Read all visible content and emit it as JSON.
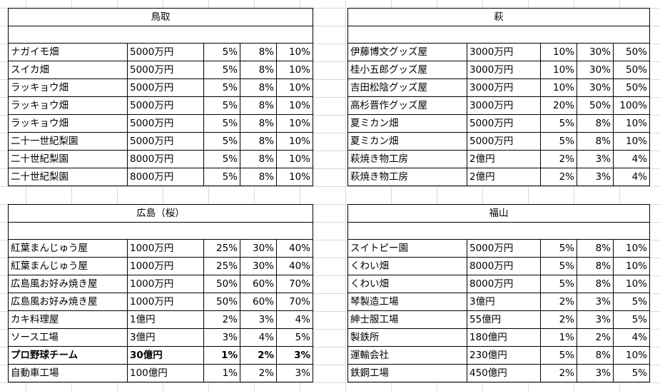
{
  "sheet": {
    "blocks": [
      {
        "title": "鳥取",
        "rows": [
          [
            "ナガイモ畑",
            "5000万円",
            "5%",
            "8%",
            "10%"
          ],
          [
            "スイカ畑",
            "5000万円",
            "5%",
            "8%",
            "10%"
          ],
          [
            "ラッキョウ畑",
            "5000万円",
            "5%",
            "8%",
            "10%"
          ],
          [
            "ラッキョウ畑",
            "5000万円",
            "5%",
            "8%",
            "10%"
          ],
          [
            "ラッキョウ畑",
            "5000万円",
            "5%",
            "8%",
            "10%"
          ],
          [
            "二十一世紀梨園",
            "5000万円",
            "5%",
            "8%",
            "10%"
          ],
          [
            "二十世紀梨園",
            "8000万円",
            "5%",
            "8%",
            "10%"
          ],
          [
            "二十世紀梨園",
            "8000万円",
            "5%",
            "8%",
            "10%"
          ]
        ]
      },
      {
        "title": "萩",
        "rows": [
          [
            "伊藤博文グッズ屋",
            "3000万円",
            "10%",
            "30%",
            "50%"
          ],
          [
            "桂小五郎グッズ屋",
            "3000万円",
            "10%",
            "30%",
            "50%"
          ],
          [
            "吉田松陰グッズ屋",
            "3000万円",
            "10%",
            "30%",
            "50%"
          ],
          [
            "高杉晋作グッズ屋",
            "3000万円",
            "20%",
            "50%",
            "100%"
          ],
          [
            "夏ミカン畑",
            "5000万円",
            "5%",
            "8%",
            "10%"
          ],
          [
            "夏ミカン畑",
            "5000万円",
            "5%",
            "8%",
            "10%"
          ],
          [
            "萩焼き物工房",
            "2億円",
            "2%",
            "3%",
            "4%"
          ],
          [
            "萩焼き物工房",
            "2億円",
            "2%",
            "3%",
            "4%"
          ]
        ]
      },
      {
        "title": "広島（桜）",
        "rows": [
          [
            "紅葉まんじゅう屋",
            "1000万円",
            "25%",
            "30%",
            "40%"
          ],
          [
            "紅葉まんじゅう屋",
            "1000万円",
            "25%",
            "30%",
            "40%"
          ],
          [
            "広島風お好み焼き屋",
            "1000万円",
            "50%",
            "60%",
            "70%"
          ],
          [
            "広島風お好み焼き屋",
            "1000万円",
            "50%",
            "60%",
            "70%"
          ],
          [
            "カキ料理屋",
            "1億円",
            "2%",
            "3%",
            "4%"
          ],
          [
            "ソース工場",
            "3億円",
            "3%",
            "4%",
            "5%"
          ],
          [
            "プロ野球チーム",
            "30億円",
            "1%",
            "2%",
            "3%"
          ],
          [
            "自動車工場",
            "100億円",
            "1%",
            "2%",
            "3%"
          ]
        ],
        "bold_row": 6
      },
      {
        "title": "福山",
        "rows": [
          [
            "スイトピー園",
            "5000万円",
            "5%",
            "8%",
            "10%"
          ],
          [
            "くわい畑",
            "8000万円",
            "5%",
            "8%",
            "10%"
          ],
          [
            "くわい畑",
            "8000万円",
            "5%",
            "8%",
            "10%"
          ],
          [
            "琴製造工場",
            "3億円",
            "2%",
            "3%",
            "5%"
          ],
          [
            "紳士服工場",
            "55億円",
            "2%",
            "3%",
            "5%"
          ],
          [
            "製鉄所",
            "180億円",
            "1%",
            "2%",
            "4%"
          ],
          [
            "運輸会社",
            "230億円",
            "5%",
            "8%",
            "10%"
          ],
          [
            "鉄鋼工場",
            "450億円",
            "2%",
            "3%",
            "5%"
          ]
        ]
      }
    ]
  }
}
